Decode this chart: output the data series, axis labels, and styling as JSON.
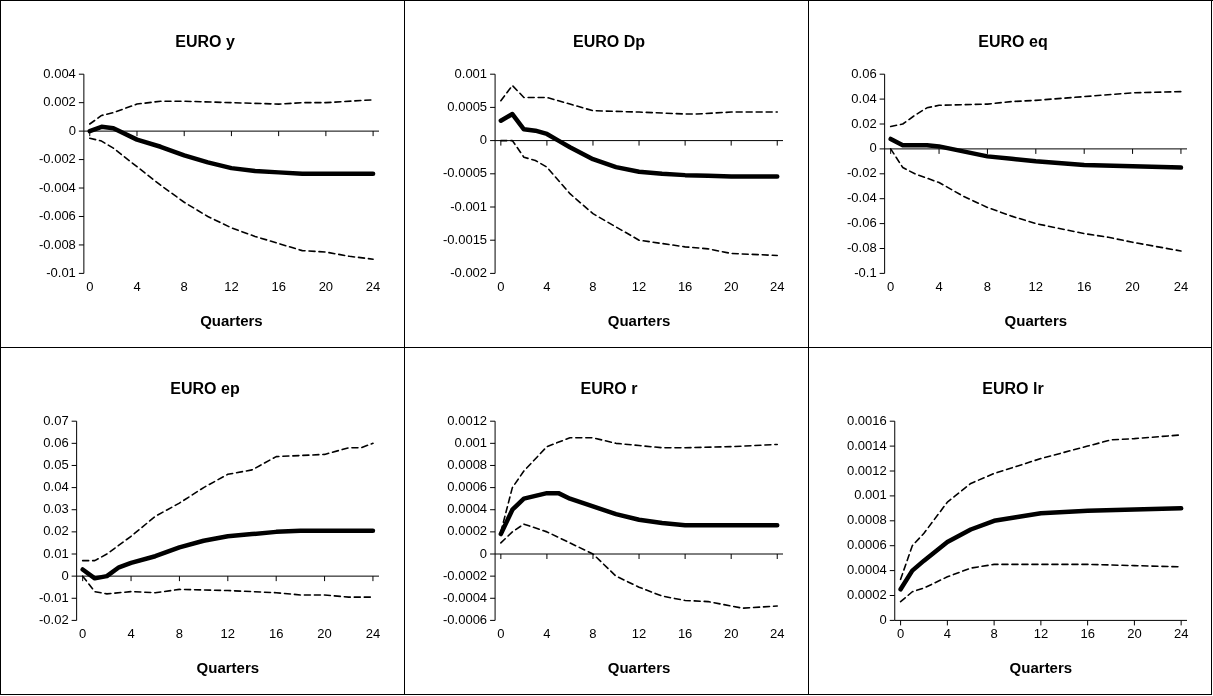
{
  "chart_data": [
    {
      "type": "line",
      "title": "EURO y",
      "xlabel": "Quarters",
      "ref_lines": [
        {
          "axis": "y",
          "value": 0
        }
      ],
      "xlim": [
        -0.5,
        24.5
      ],
      "xticks": [
        0,
        4,
        8,
        12,
        16,
        20,
        24
      ],
      "ylim": [
        -0.01,
        0.004
      ],
      "yticks": [
        -0.01,
        -0.008,
        -0.006,
        -0.004,
        -0.002,
        0,
        0.002,
        0.004
      ],
      "grid": false,
      "legend": false,
      "marker": "none",
      "series": [
        {
          "color": "#000000",
          "line_style": "dashed",
          "x": [
            0,
            1,
            2,
            4,
            6,
            8,
            12,
            16,
            18,
            20,
            24
          ],
          "values": [
            0.0005,
            0.0011,
            0.0013,
            0.0019,
            0.0021,
            0.0021,
            0.002,
            0.0019,
            0.002,
            0.002,
            0.0022
          ]
        },
        {
          "color": "#000000",
          "line_style": "solid",
          "x": [
            0,
            1,
            2,
            4,
            6,
            8,
            10,
            12,
            14,
            16,
            18,
            20,
            24
          ],
          "values": [
            0,
            0.0003,
            0.0002,
            -0.0006,
            -0.0011,
            -0.0017,
            -0.0022,
            -0.0026,
            -0.0028,
            -0.0029,
            -0.003,
            -0.003,
            -0.003
          ]
        },
        {
          "color": "#000000",
          "line_style": "dashed",
          "x": [
            0,
            1,
            2,
            4,
            6,
            8,
            10,
            12,
            14,
            16,
            18,
            20,
            22,
            24
          ],
          "values": [
            -0.0005,
            -0.0007,
            -0.0012,
            -0.0025,
            -0.0038,
            -0.005,
            -0.006,
            -0.0068,
            -0.0074,
            -0.0079,
            -0.0084,
            -0.0085,
            -0.0088,
            -0.009
          ]
        }
      ]
    },
    {
      "type": "line",
      "title": "EURO Dp",
      "xlabel": "Quarters",
      "ref_lines": [
        {
          "axis": "y",
          "value": 0
        }
      ],
      "xlim": [
        -0.5,
        24.5
      ],
      "xticks": [
        0,
        4,
        8,
        12,
        16,
        20,
        24
      ],
      "ylim": [
        -0.002,
        0.001
      ],
      "yticks": [
        -0.002,
        -0.0015,
        -0.001,
        -0.0005,
        0,
        0.0005,
        0.001
      ],
      "grid": false,
      "legend": false,
      "marker": "none",
      "series": [
        {
          "color": "#000000",
          "line_style": "dashed",
          "x": [
            0,
            1,
            2,
            4,
            6,
            8,
            12,
            16,
            17,
            20,
            24
          ],
          "values": [
            0.0006,
            0.00083,
            0.00065,
            0.00065,
            0.00055,
            0.00045,
            0.00043,
            0.0004,
            0.0004,
            0.00043,
            0.00043
          ]
        },
        {
          "color": "#000000",
          "line_style": "solid",
          "x": [
            0,
            1,
            2,
            3,
            4,
            5,
            6,
            8,
            10,
            12,
            14,
            16,
            18,
            20,
            24
          ],
          "values": [
            0.0003,
            0.0004,
            0.00017,
            0.00015,
            0.0001,
            0,
            -0.0001,
            -0.00028,
            -0.0004,
            -0.00047,
            -0.0005,
            -0.00052,
            -0.00053,
            -0.00054,
            -0.00054
          ]
        },
        {
          "color": "#000000",
          "line_style": "dashed",
          "x": [
            0,
            1,
            2,
            3,
            4,
            6,
            8,
            10,
            12,
            14,
            16,
            18,
            20,
            24
          ],
          "values": [
            0,
            0,
            -0.00025,
            -0.0003,
            -0.0004,
            -0.0008,
            -0.0011,
            -0.0013,
            -0.0015,
            -0.00155,
            -0.0016,
            -0.00163,
            -0.0017,
            -0.00173
          ]
        }
      ]
    },
    {
      "type": "line",
      "title": "EURO eq",
      "xlabel": "Quarters",
      "ref_lines": [
        {
          "axis": "y",
          "value": 0
        }
      ],
      "xlim": [
        -0.5,
        24.5
      ],
      "xticks": [
        0,
        4,
        8,
        12,
        16,
        20,
        24
      ],
      "ylim": [
        -0.1,
        0.06
      ],
      "yticks": [
        -0.1,
        -0.08,
        -0.06,
        -0.04,
        -0.02,
        0,
        0.02,
        0.04,
        0.06
      ],
      "grid": false,
      "legend": false,
      "marker": "none",
      "series": [
        {
          "color": "#000000",
          "line_style": "dashed",
          "x": [
            0,
            1,
            2,
            3,
            4,
            8,
            10,
            12,
            16,
            20,
            24
          ],
          "values": [
            0.018,
            0.02,
            0.027,
            0.033,
            0.035,
            0.036,
            0.038,
            0.039,
            0.042,
            0.045,
            0.046
          ]
        },
        {
          "color": "#000000",
          "line_style": "solid",
          "x": [
            0,
            1,
            2,
            3,
            4,
            6,
            8,
            10,
            12,
            16,
            20,
            24
          ],
          "values": [
            0.008,
            0.003,
            0.003,
            0.003,
            0.002,
            -0.002,
            -0.006,
            -0.008,
            -0.01,
            -0.013,
            -0.014,
            -0.015
          ]
        },
        {
          "color": "#000000",
          "line_style": "dashed",
          "x": [
            0,
            1,
            2,
            4,
            6,
            8,
            10,
            12,
            16,
            18,
            20,
            24
          ],
          "values": [
            0,
            -0.015,
            -0.02,
            -0.027,
            -0.038,
            -0.047,
            -0.054,
            -0.06,
            -0.068,
            -0.071,
            -0.075,
            -0.082
          ]
        }
      ]
    },
    {
      "type": "line",
      "title": "EURO ep",
      "xlabel": "Quarters",
      "ref_lines": [
        {
          "axis": "y",
          "value": 0
        }
      ],
      "xlim": [
        -0.5,
        24.5
      ],
      "xticks": [
        0,
        4,
        8,
        12,
        16,
        20,
        24
      ],
      "ylim": [
        -0.02,
        0.07
      ],
      "yticks": [
        -0.02,
        -0.01,
        0,
        0.01,
        0.02,
        0.03,
        0.04,
        0.05,
        0.06,
        0.07
      ],
      "grid": false,
      "legend": false,
      "marker": "none",
      "series": [
        {
          "color": "#000000",
          "line_style": "dashed",
          "x": [
            0,
            1,
            2,
            4,
            6,
            8,
            10,
            12,
            14,
            16,
            20,
            22,
            23,
            24
          ],
          "values": [
            0.007,
            0.007,
            0.01,
            0.018,
            0.027,
            0.033,
            0.04,
            0.046,
            0.048,
            0.054,
            0.055,
            0.058,
            0.058,
            0.06
          ]
        },
        {
          "color": "#000000",
          "line_style": "solid",
          "x": [
            0,
            1,
            2,
            3,
            4,
            6,
            8,
            10,
            12,
            14,
            16,
            18,
            24
          ],
          "values": [
            0.003,
            -0.001,
            0,
            0.004,
            0.006,
            0.009,
            0.013,
            0.016,
            0.018,
            0.019,
            0.02,
            0.0205,
            0.0205
          ]
        },
        {
          "color": "#000000",
          "line_style": "dashed",
          "x": [
            0,
            1,
            2,
            4,
            6,
            8,
            12,
            16,
            18,
            20,
            22,
            24
          ],
          "values": [
            0,
            -0.007,
            -0.008,
            -0.007,
            -0.0075,
            -0.006,
            -0.0065,
            -0.0075,
            -0.0085,
            -0.0085,
            -0.0095,
            -0.0095
          ]
        }
      ]
    },
    {
      "type": "line",
      "title": "EURO r",
      "xlabel": "Quarters",
      "ref_lines": [
        {
          "axis": "y",
          "value": 0
        }
      ],
      "xlim": [
        -0.5,
        24.5
      ],
      "xticks": [
        0,
        4,
        8,
        12,
        16,
        20,
        24
      ],
      "ylim": [
        -0.0006,
        0.0012
      ],
      "yticks": [
        -0.0006,
        -0.0004,
        -0.0002,
        0,
        0.0002,
        0.0004,
        0.0006,
        0.0008,
        0.001,
        0.0012
      ],
      "grid": false,
      "legend": false,
      "marker": "none",
      "series": [
        {
          "color": "#000000",
          "line_style": "dashed",
          "x": [
            0,
            1,
            2,
            4,
            6,
            8,
            10,
            12,
            14,
            16,
            20,
            24
          ],
          "values": [
            0.0002,
            0.0006,
            0.00075,
            0.00097,
            0.00105,
            0.00105,
            0.001,
            0.00098,
            0.00096,
            0.00096,
            0.00097,
            0.00099
          ]
        },
        {
          "color": "#000000",
          "line_style": "solid",
          "x": [
            0,
            1,
            2,
            4,
            5,
            6,
            8,
            10,
            12,
            14,
            16,
            24
          ],
          "values": [
            0.00018,
            0.0004,
            0.0005,
            0.00055,
            0.00055,
            0.0005,
            0.00043,
            0.00036,
            0.00031,
            0.00028,
            0.00026,
            0.00026
          ]
        },
        {
          "color": "#000000",
          "line_style": "dashed",
          "x": [
            0,
            1,
            2,
            4,
            6,
            8,
            10,
            12,
            14,
            16,
            18,
            20,
            21,
            24
          ],
          "values": [
            0.0001,
            0.0002,
            0.00027,
            0.0002,
            0.0001,
            0,
            -0.0002,
            -0.0003,
            -0.00038,
            -0.00042,
            -0.00043,
            -0.00047,
            -0.00049,
            -0.00047
          ]
        }
      ]
    },
    {
      "type": "line",
      "title": "EURO lr",
      "xlabel": "Quarters",
      "xlim": [
        -0.5,
        24.5
      ],
      "xticks": [
        0,
        4,
        8,
        12,
        16,
        20,
        24
      ],
      "ylim": [
        0,
        0.0016
      ],
      "yticks": [
        0,
        0.0002,
        0.0004,
        0.0006,
        0.0008,
        0.001,
        0.0012,
        0.0014,
        0.0016
      ],
      "grid": false,
      "legend": false,
      "marker": "none",
      "series": [
        {
          "color": "#000000",
          "line_style": "dashed",
          "x": [
            0,
            1,
            2,
            4,
            6,
            8,
            12,
            16,
            18,
            20,
            24
          ],
          "values": [
            0.00033,
            0.0006,
            0.0007,
            0.00095,
            0.0011,
            0.00118,
            0.0013,
            0.0014,
            0.00145,
            0.00146,
            0.00149
          ]
        },
        {
          "color": "#000000",
          "line_style": "solid",
          "x": [
            0,
            1,
            2,
            4,
            6,
            8,
            10,
            12,
            16,
            20,
            24
          ],
          "values": [
            0.00025,
            0.0004,
            0.00048,
            0.00063,
            0.00073,
            0.0008,
            0.00083,
            0.00086,
            0.00088,
            0.00089,
            0.0009
          ]
        },
        {
          "color": "#000000",
          "line_style": "dashed",
          "x": [
            0,
            1,
            2,
            4,
            6,
            8,
            12,
            16,
            20,
            24
          ],
          "values": [
            0.00015,
            0.00023,
            0.00026,
            0.00035,
            0.00042,
            0.00045,
            0.00045,
            0.00045,
            0.00044,
            0.00043
          ]
        }
      ]
    }
  ]
}
